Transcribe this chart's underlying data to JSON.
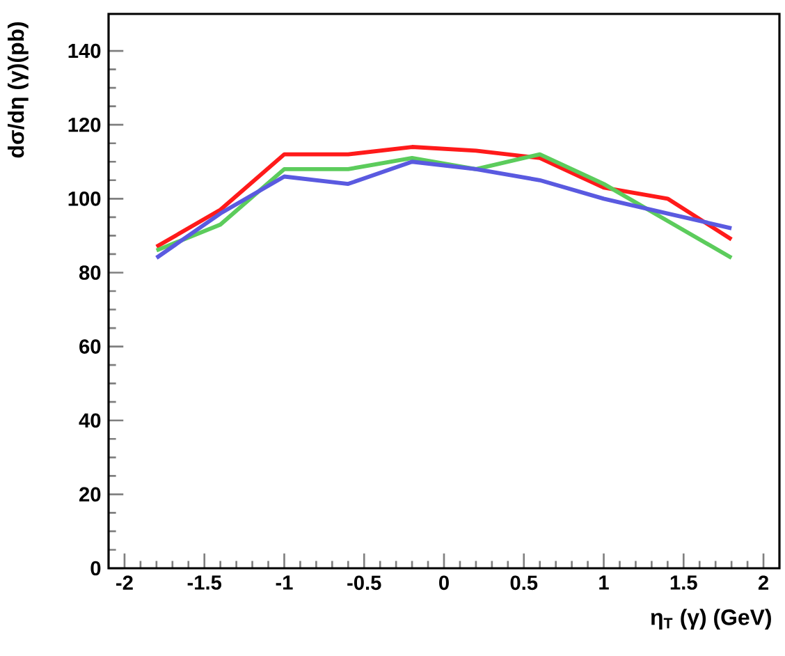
{
  "chart_data": {
    "type": "line",
    "xlabel": "η$_{T}$ (γ) (GeV)",
    "ylabel": "dσ/dη (γ)(pb)",
    "x": [
      -1.8,
      -1.4,
      -1.0,
      -0.6,
      -0.2,
      0.2,
      0.6,
      1.0,
      1.4,
      1.8
    ],
    "series": [
      {
        "color": "#ff1a1a",
        "values": [
          87,
          97,
          112,
          112,
          114,
          113,
          111,
          103,
          100,
          89
        ]
      },
      {
        "color": "#5ccc5c",
        "values": [
          86,
          93,
          108,
          108,
          111,
          108,
          112,
          104,
          94,
          84
        ]
      },
      {
        "color": "#5a5ae0",
        "values": [
          84,
          96,
          106,
          104,
          110,
          108,
          105,
          100,
          96,
          92
        ]
      }
    ],
    "xlim": [
      -2.1,
      2.1
    ],
    "ylim": [
      0,
      150
    ],
    "xticks": [
      -2,
      -1.5,
      -1,
      -0.5,
      0,
      0.5,
      1,
      1.5,
      2
    ],
    "yticks": [
      0,
      20,
      40,
      60,
      80,
      100,
      120,
      140
    ],
    "grid": false,
    "marker": "none",
    "line_style": "solid"
  }
}
